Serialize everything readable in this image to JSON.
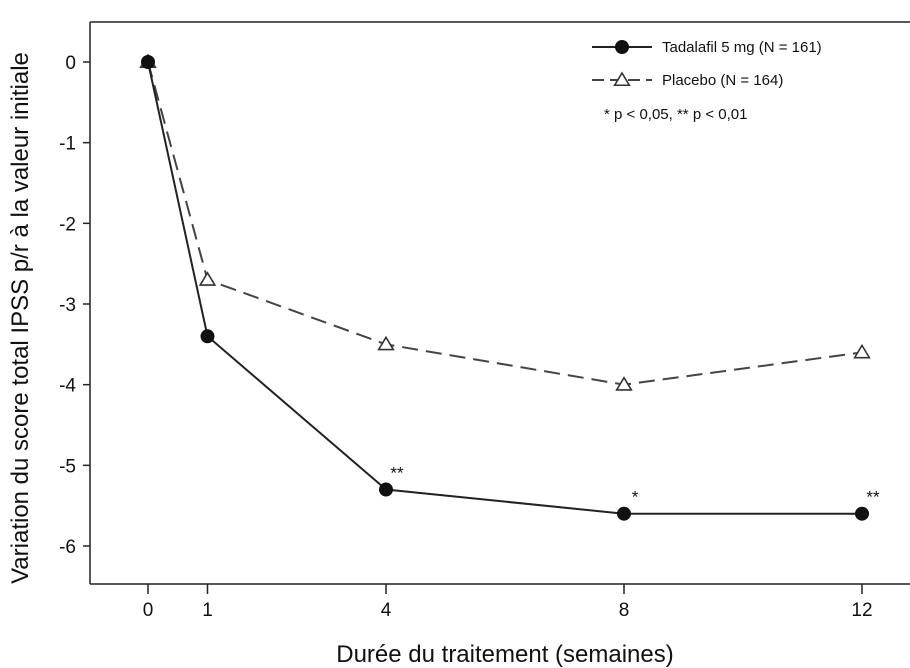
{
  "chart_data": {
    "type": "line",
    "xlabel": "Durée du traitement (semaines)",
    "ylabel": "Variation du score total IPSS p/r à la valeur initiale",
    "x": [
      0,
      1,
      4,
      8,
      12
    ],
    "xticks": [
      "0",
      "1",
      "4",
      "8",
      "12"
    ],
    "xlim": [
      0,
      12
    ],
    "yticks": [
      "0",
      "-1",
      "-2",
      "-3",
      "-4",
      "-5",
      "-6"
    ],
    "ylim": [
      -6.5,
      0.5
    ],
    "grid": false,
    "legend_position": "top-right",
    "series": [
      {
        "name": "Tadalafil 5 mg (N = 161)",
        "values": [
          0,
          -3.4,
          -5.3,
          -5.6,
          -5.6
        ],
        "marker": "filled-circle",
        "line": "solid",
        "color": "#222222",
        "significance": [
          "",
          "",
          "**",
          "*",
          "**"
        ]
      },
      {
        "name": "Placebo (N = 164)",
        "values": [
          0,
          -2.7,
          -3.5,
          -4.0,
          -3.6
        ],
        "marker": "open-triangle",
        "line": "dashed",
        "color": "#444444"
      }
    ],
    "legend_note": "* p < 0,05, ** p < 0,01"
  }
}
